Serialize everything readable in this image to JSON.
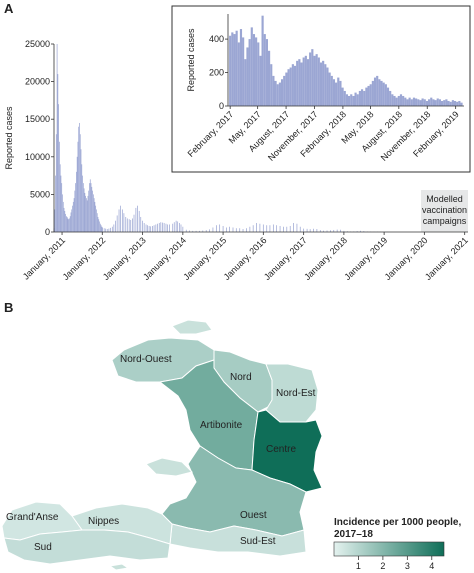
{
  "panel_a_label": "A",
  "panel_b_label": "B",
  "colors": {
    "bar": "#9ba6d3",
    "vacc_box": "#e6e7e8",
    "inset_border": "#333333"
  },
  "chart_data": [
    {
      "type": "bar",
      "title": "",
      "xlabel": "",
      "ylabel": "Reported cases",
      "ylim": [
        0,
        25000
      ],
      "yticks": [
        0,
        5000,
        10000,
        15000,
        20000,
        25000
      ],
      "x_tick_labels": [
        "January, 2011",
        "January, 2012",
        "January, 2013",
        "January, 2014",
        "January, 2015",
        "January, 2016",
        "January, 2017",
        "January, 2018",
        "January, 2019",
        "January, 2020",
        "January, 2021"
      ],
      "x_range": [
        "2010-10-20",
        "2021-01-31"
      ],
      "annotation": "Modelled\nvaccination\ncampaigns",
      "annotation_span": [
        "2019-12-01",
        "2021-01-31"
      ],
      "weekly_cases": [
        [
          "2010-10-20",
          500
        ],
        [
          "2010-10-27",
          3000
        ],
        [
          "2010-11-03",
          7500
        ],
        [
          "2010-11-10",
          13000
        ],
        [
          "2010-11-17",
          25000
        ],
        [
          "2010-11-24",
          21000
        ],
        [
          "2010-12-01",
          17000
        ],
        [
          "2010-12-08",
          12000
        ],
        [
          "2010-12-15",
          9000
        ],
        [
          "2010-12-22",
          7500
        ],
        [
          "2010-12-29",
          6500
        ],
        [
          "2011-01-05",
          5000
        ],
        [
          "2011-01-12",
          4000
        ],
        [
          "2011-01-19",
          3200
        ],
        [
          "2011-01-26",
          2800
        ],
        [
          "2011-02-02",
          2400
        ],
        [
          "2011-02-09",
          2100
        ],
        [
          "2011-02-16",
          2000
        ],
        [
          "2011-02-23",
          1800
        ],
        [
          "2011-03-02",
          1700
        ],
        [
          "2011-03-09",
          1800
        ],
        [
          "2011-03-16",
          2100
        ],
        [
          "2011-03-23",
          2600
        ],
        [
          "2011-03-30",
          3000
        ],
        [
          "2011-04-06",
          3500
        ],
        [
          "2011-04-13",
          4000
        ],
        [
          "2011-04-20",
          4500
        ],
        [
          "2011-04-27",
          5500
        ],
        [
          "2011-05-04",
          6500
        ],
        [
          "2011-05-11",
          8000
        ],
        [
          "2011-05-18",
          10000
        ],
        [
          "2011-05-25",
          12000
        ],
        [
          "2011-06-01",
          14000
        ],
        [
          "2011-06-08",
          14500
        ],
        [
          "2011-06-15",
          13000
        ],
        [
          "2011-06-22",
          11000
        ],
        [
          "2011-06-29",
          9000
        ],
        [
          "2011-07-06",
          7500
        ],
        [
          "2011-07-13",
          6500
        ],
        [
          "2011-07-20",
          5800
        ],
        [
          "2011-07-27",
          5200
        ],
        [
          "2011-08-03",
          4800
        ],
        [
          "2011-08-10",
          4500
        ],
        [
          "2011-08-17",
          4200
        ],
        [
          "2011-08-24",
          4800
        ],
        [
          "2011-08-31",
          5500
        ],
        [
          "2011-09-07",
          6500
        ],
        [
          "2011-09-14",
          7000
        ],
        [
          "2011-09-21",
          6500
        ],
        [
          "2011-09-28",
          6000
        ],
        [
          "2011-10-05",
          5500
        ],
        [
          "2011-10-12",
          5000
        ],
        [
          "2011-10-19",
          4500
        ],
        [
          "2011-10-26",
          4000
        ],
        [
          "2011-11-02",
          3500
        ],
        [
          "2011-11-09",
          3000
        ],
        [
          "2011-11-16",
          2500
        ],
        [
          "2011-11-23",
          2000
        ],
        [
          "2011-11-30",
          1700
        ],
        [
          "2011-12-07",
          1400
        ],
        [
          "2011-12-14",
          1100
        ],
        [
          "2011-12-21",
          900
        ],
        [
          "2011-12-28",
          700
        ],
        [
          "2012-01-04",
          600
        ],
        [
          "2012-01-18",
          500
        ],
        [
          "2012-02-01",
          450
        ],
        [
          "2012-02-15",
          400
        ],
        [
          "2012-03-01",
          450
        ],
        [
          "2012-03-15",
          550
        ],
        [
          "2012-04-01",
          700
        ],
        [
          "2012-04-15",
          1000
        ],
        [
          "2012-05-01",
          1500
        ],
        [
          "2012-05-15",
          2200
        ],
        [
          "2012-06-01",
          3000
        ],
        [
          "2012-06-15",
          3500
        ],
        [
          "2012-07-01",
          3000
        ],
        [
          "2012-07-15",
          2500
        ],
        [
          "2012-08-01",
          2000
        ],
        [
          "2012-08-15",
          1800
        ],
        [
          "2012-09-01",
          1700
        ],
        [
          "2012-09-15",
          1600
        ],
        [
          "2012-10-01",
          1800
        ],
        [
          "2012-10-15",
          2300
        ],
        [
          "2012-11-01",
          3200
        ],
        [
          "2012-11-15",
          3500
        ],
        [
          "2012-12-01",
          2800
        ],
        [
          "2012-12-15",
          2000
        ],
        [
          "2013-01-01",
          1500
        ],
        [
          "2013-01-15",
          1200
        ],
        [
          "2013-02-01",
          1000
        ],
        [
          "2013-02-15",
          900
        ],
        [
          "2013-03-01",
          800
        ],
        [
          "2013-03-15",
          750
        ],
        [
          "2013-04-01",
          800
        ],
        [
          "2013-04-15",
          900
        ],
        [
          "2013-05-01",
          1000
        ],
        [
          "2013-05-15",
          1100
        ],
        [
          "2013-06-01",
          1200
        ],
        [
          "2013-06-15",
          1300
        ],
        [
          "2013-07-01",
          1250
        ],
        [
          "2013-07-15",
          1200
        ],
        [
          "2013-08-01",
          1100
        ],
        [
          "2013-08-15",
          1000
        ],
        [
          "2013-09-01",
          1000
        ],
        [
          "2013-10-01",
          1100
        ],
        [
          "2013-10-15",
          1300
        ],
        [
          "2013-11-01",
          1500
        ],
        [
          "2013-11-15",
          1400
        ],
        [
          "2013-12-01",
          1200
        ],
        [
          "2013-12-15",
          1000
        ],
        [
          "2014-01-01",
          700
        ],
        [
          "2014-02-01",
          300
        ],
        [
          "2014-03-01",
          200
        ],
        [
          "2014-04-01",
          150
        ],
        [
          "2014-05-01",
          150
        ],
        [
          "2014-06-01",
          150
        ],
        [
          "2014-07-01",
          200
        ],
        [
          "2014-08-01",
          250
        ],
        [
          "2014-09-01",
          350
        ],
        [
          "2014-10-01",
          600
        ],
        [
          "2014-11-01",
          900
        ],
        [
          "2014-12-01",
          1000
        ],
        [
          "2015-01-01",
          800
        ],
        [
          "2015-02-01",
          600
        ],
        [
          "2015-03-01",
          700
        ],
        [
          "2015-04-01",
          600
        ],
        [
          "2015-05-01",
          500
        ],
        [
          "2015-06-01",
          500
        ],
        [
          "2015-07-01",
          400
        ],
        [
          "2015-08-01",
          500
        ],
        [
          "2015-09-01",
          700
        ],
        [
          "2015-10-01",
          900
        ],
        [
          "2015-11-01",
          1200
        ],
        [
          "2015-12-01",
          1100
        ],
        [
          "2016-01-01",
          1000
        ],
        [
          "2016-02-01",
          900
        ],
        [
          "2016-03-01",
          900
        ],
        [
          "2016-04-01",
          1000
        ],
        [
          "2016-05-01",
          900
        ],
        [
          "2016-06-01",
          800
        ],
        [
          "2016-07-01",
          700
        ],
        [
          "2016-08-01",
          700
        ],
        [
          "2016-09-01",
          800
        ],
        [
          "2016-10-01",
          1200
        ],
        [
          "2016-11-01",
          1100
        ],
        [
          "2016-12-01",
          700
        ],
        [
          "2017-01-01",
          450
        ],
        [
          "2017-02-01",
          420
        ],
        [
          "2017-03-01",
          380
        ],
        [
          "2017-04-01",
          430
        ],
        [
          "2017-05-01",
          400
        ],
        [
          "2017-06-01",
          250
        ],
        [
          "2017-07-01",
          180
        ],
        [
          "2017-08-01",
          200
        ],
        [
          "2017-09-01",
          230
        ],
        [
          "2017-10-01",
          270
        ],
        [
          "2017-11-01",
          320
        ],
        [
          "2017-12-01",
          300
        ],
        [
          "2018-01-01",
          150
        ],
        [
          "2018-02-01",
          100
        ],
        [
          "2018-03-01",
          70
        ],
        [
          "2018-04-01",
          80
        ],
        [
          "2018-05-01",
          120
        ],
        [
          "2018-06-01",
          160
        ],
        [
          "2018-07-01",
          120
        ],
        [
          "2018-08-01",
          70
        ],
        [
          "2018-09-01",
          50
        ],
        [
          "2018-10-01",
          40
        ],
        [
          "2018-11-01",
          40
        ],
        [
          "2018-12-01",
          40
        ],
        [
          "2019-01-01",
          30
        ],
        [
          "2019-02-01",
          20
        ]
      ]
    },
    {
      "type": "bar",
      "title": "",
      "xlabel": "",
      "ylabel": "Reported cases",
      "ylim": [
        0,
        550
      ],
      "yticks": [
        0,
        200,
        400
      ],
      "x_tick_labels": [
        "February, 2017",
        "May, 2017",
        "August, 2017",
        "November, 2017",
        "February, 2018",
        "May, 2018",
        "August, 2018",
        "November, 2018",
        "February, 2019"
      ],
      "x_range": [
        "2017-01-25",
        "2019-02-28"
      ],
      "weekly_cases": [
        [
          "2017-02-01",
          420
        ],
        [
          "2017-02-08",
          440
        ],
        [
          "2017-02-15",
          430
        ],
        [
          "2017-02-22",
          450
        ],
        [
          "2017-03-01",
          380
        ],
        [
          "2017-03-08",
          460
        ],
        [
          "2017-03-15",
          410
        ],
        [
          "2017-03-22",
          280
        ],
        [
          "2017-03-29",
          350
        ],
        [
          "2017-04-05",
          400
        ],
        [
          "2017-04-12",
          470
        ],
        [
          "2017-04-19",
          430
        ],
        [
          "2017-04-26",
          410
        ],
        [
          "2017-05-03",
          380
        ],
        [
          "2017-05-10",
          300
        ],
        [
          "2017-05-17",
          540
        ],
        [
          "2017-05-24",
          430
        ],
        [
          "2017-05-31",
          400
        ],
        [
          "2017-06-07",
          330
        ],
        [
          "2017-06-14",
          250
        ],
        [
          "2017-06-21",
          180
        ],
        [
          "2017-06-28",
          150
        ],
        [
          "2017-07-05",
          130
        ],
        [
          "2017-07-12",
          140
        ],
        [
          "2017-07-19",
          160
        ],
        [
          "2017-07-26",
          180
        ],
        [
          "2017-08-02",
          200
        ],
        [
          "2017-08-09",
          220
        ],
        [
          "2017-08-16",
          230
        ],
        [
          "2017-08-23",
          250
        ],
        [
          "2017-08-30",
          240
        ],
        [
          "2017-09-06",
          270
        ],
        [
          "2017-09-13",
          280
        ],
        [
          "2017-09-20",
          260
        ],
        [
          "2017-09-27",
          290
        ],
        [
          "2017-10-04",
          300
        ],
        [
          "2017-10-11",
          280
        ],
        [
          "2017-10-18",
          320
        ],
        [
          "2017-10-25",
          340
        ],
        [
          "2017-11-01",
          300
        ],
        [
          "2017-11-08",
          310
        ],
        [
          "2017-11-15",
          290
        ],
        [
          "2017-11-22",
          260
        ],
        [
          "2017-11-29",
          270
        ],
        [
          "2017-12-06",
          250
        ],
        [
          "2017-12-13",
          230
        ],
        [
          "2017-12-20",
          200
        ],
        [
          "2017-12-27",
          180
        ],
        [
          "2018-01-03",
          160
        ],
        [
          "2018-01-10",
          140
        ],
        [
          "2018-01-17",
          170
        ],
        [
          "2018-01-24",
          150
        ],
        [
          "2018-01-31",
          110
        ],
        [
          "2018-02-07",
          90
        ],
        [
          "2018-02-14",
          70
        ],
        [
          "2018-02-21",
          60
        ],
        [
          "2018-02-28",
          70
        ],
        [
          "2018-03-07",
          60
        ],
        [
          "2018-03-14",
          80
        ],
        [
          "2018-03-21",
          70
        ],
        [
          "2018-03-28",
          90
        ],
        [
          "2018-04-04",
          100
        ],
        [
          "2018-04-11",
          90
        ],
        [
          "2018-04-18",
          110
        ],
        [
          "2018-04-25",
          120
        ],
        [
          "2018-05-02",
          130
        ],
        [
          "2018-05-09",
          150
        ],
        [
          "2018-05-16",
          170
        ],
        [
          "2018-05-23",
          180
        ],
        [
          "2018-05-30",
          160
        ],
        [
          "2018-06-06",
          150
        ],
        [
          "2018-06-13",
          140
        ],
        [
          "2018-06-20",
          130
        ],
        [
          "2018-06-27",
          110
        ],
        [
          "2018-07-04",
          90
        ],
        [
          "2018-07-11",
          70
        ],
        [
          "2018-07-18",
          60
        ],
        [
          "2018-07-25",
          50
        ],
        [
          "2018-08-01",
          60
        ],
        [
          "2018-08-08",
          70
        ],
        [
          "2018-08-15",
          60
        ],
        [
          "2018-08-22",
          50
        ],
        [
          "2018-08-29",
          40
        ],
        [
          "2018-09-05",
          50
        ],
        [
          "2018-09-12",
          40
        ],
        [
          "2018-09-19",
          50
        ],
        [
          "2018-09-26",
          45
        ],
        [
          "2018-10-03",
          40
        ],
        [
          "2018-10-10",
          35
        ],
        [
          "2018-10-17",
          45
        ],
        [
          "2018-10-24",
          40
        ],
        [
          "2018-10-31",
          30
        ],
        [
          "2018-11-07",
          40
        ],
        [
          "2018-11-14",
          50
        ],
        [
          "2018-11-21",
          40
        ],
        [
          "2018-11-28",
          35
        ],
        [
          "2018-12-05",
          45
        ],
        [
          "2018-12-12",
          40
        ],
        [
          "2018-12-19",
          30
        ],
        [
          "2018-12-26",
          35
        ],
        [
          "2019-01-02",
          40
        ],
        [
          "2019-01-09",
          30
        ],
        [
          "2019-01-16",
          25
        ],
        [
          "2019-01-23",
          35
        ],
        [
          "2019-01-30",
          30
        ],
        [
          "2019-02-06",
          25
        ],
        [
          "2019-02-13",
          30
        ],
        [
          "2019-02-20",
          20
        ]
      ]
    }
  ],
  "map": {
    "regions": [
      {
        "name": "Nord-Ouest",
        "incidence": 1.2
      },
      {
        "name": "Nord",
        "incidence": 1.3
      },
      {
        "name": "Nord-Est",
        "incidence": 0.8
      },
      {
        "name": "Artibonite",
        "incidence": 2.4
      },
      {
        "name": "Centre",
        "incidence": 4.5
      },
      {
        "name": "Ouest",
        "incidence": 1.9
      },
      {
        "name": "Sud-Est",
        "incidence": 0.6
      },
      {
        "name": "Nippes",
        "incidence": 0.5
      },
      {
        "name": "Grand'Anse",
        "incidence": 0.4
      },
      {
        "name": "Sud",
        "incidence": 0.7
      }
    ],
    "legend": {
      "title_line1": "Incidence per 1000 people,",
      "title_line2": "2017–18",
      "ticks": [
        "1",
        "2",
        "3",
        "4"
      ],
      "color_low": "#e4f2ef",
      "color_high": "#0f6e58"
    }
  }
}
